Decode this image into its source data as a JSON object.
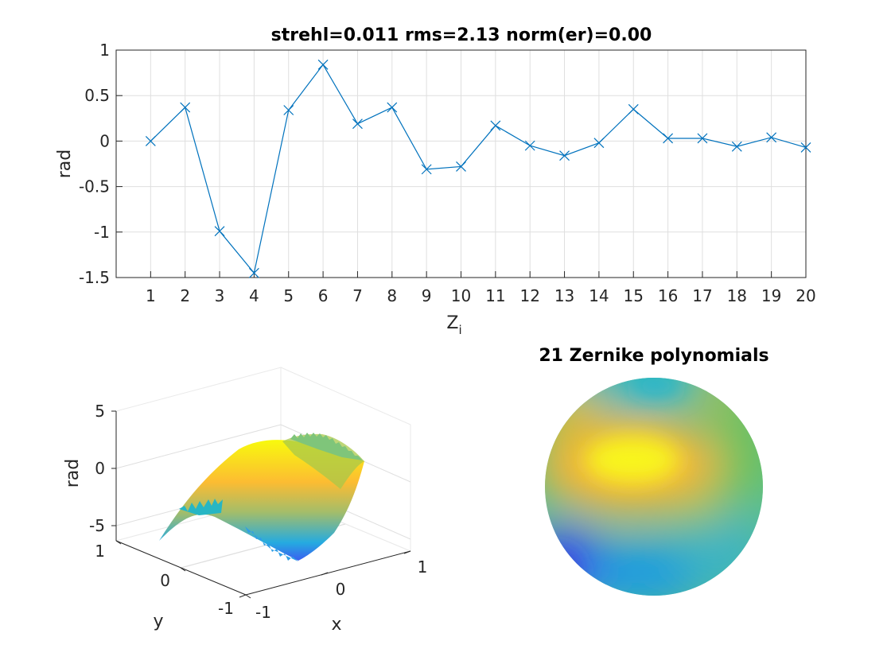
{
  "colors": {
    "series": "#0072BD",
    "axis": "#262626",
    "grid": "#dfdfdf"
  },
  "chart_data": [
    {
      "type": "line",
      "title": "strehl=0.011 rms=2.13 norm(er)=0.00",
      "xlabel": "Z",
      "xlabel_sub": "i",
      "ylabel": "rad",
      "x": [
        1,
        2,
        3,
        4,
        5,
        6,
        7,
        8,
        9,
        10,
        11,
        12,
        13,
        14,
        15,
        16,
        17,
        18,
        19,
        20
      ],
      "values": [
        0.0,
        0.37,
        -0.99,
        -1.45,
        0.34,
        0.84,
        0.19,
        0.37,
        -0.31,
        -0.28,
        0.17,
        -0.05,
        -0.16,
        -0.02,
        0.35,
        0.03,
        0.03,
        -0.06,
        0.04,
        -0.07
      ],
      "xlim": [
        0,
        20
      ],
      "ylim": [
        -1.5,
        1
      ],
      "xticks": [
        "1",
        "2",
        "3",
        "4",
        "5",
        "6",
        "7",
        "8",
        "9",
        "10",
        "11",
        "12",
        "13",
        "14",
        "15",
        "16",
        "17",
        "18",
        "19",
        "20"
      ],
      "yticks": [
        "1",
        "0.5",
        "0",
        "-0.5",
        "-1",
        "-1.5"
      ],
      "marker": "x",
      "grid": true
    },
    {
      "type": "surface",
      "zlabel": "rad",
      "xlabel": "x",
      "ylabel": "y",
      "zticks": [
        "5",
        "0",
        "-5"
      ],
      "xticks": [
        "-1",
        "0",
        "1"
      ],
      "yticks": [
        "1",
        "0",
        "-1"
      ],
      "colormap": "parula",
      "grid": true
    },
    {
      "type": "heatmap",
      "title": "21 Zernike polynomials",
      "colormap": "parula"
    }
  ]
}
